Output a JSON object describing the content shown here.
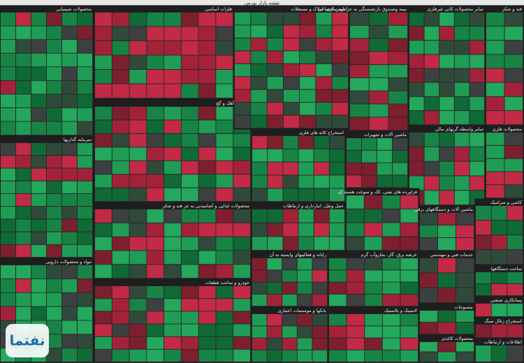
{
  "title": "نقشه بازار بورس",
  "sectors": [
    {
      "name": "محصولات شیمیایی"
    },
    {
      "name": "سرمایه گذاریها"
    },
    {
      "name": "مواد و محصولات دارویی"
    },
    {
      "name": "فلزات اساسی"
    },
    {
      "name": "سیمان، آهک و گچ"
    },
    {
      "name": "محصولات غذایی و آشامیدنی به جز قند و شکر"
    },
    {
      "name": "خودرو و ساخت قطعات"
    },
    {
      "name": "انبوه سازی، املاک و مستغلات"
    },
    {
      "name": "بیمه وصندوق بازنشستگی به جز تامین اجتماعی"
    },
    {
      "name": "سایر محصولات کانی غیرفلزی"
    },
    {
      "name": "قند و شکر"
    },
    {
      "name": "استخراج کانه های فلزی"
    },
    {
      "name": "ماشین آلات و تجهیزات"
    },
    {
      "name": "سایر واسطه گریهای مالی"
    },
    {
      "name": "محصولات فلزی"
    },
    {
      "name": "حمل ونقل، انبارداری و ارتباطات"
    },
    {
      "name": "فراورده های نفتی، کک و سوخت هسته ای"
    },
    {
      "name": "ماشین آلات و دستگاههای برقی"
    },
    {
      "name": "کاشی و سرامیک"
    },
    {
      "name": "رایانه و فعالیتهای وابسته به آن"
    },
    {
      "name": "عرضه برق، گاز، بخاروآب گرم"
    },
    {
      "name": "بانکها و موسسات اعتباری"
    },
    {
      "name": "لاستیک و پلاستیک"
    },
    {
      "name": "خدمات فنی و مهندسی"
    },
    {
      "name": "ساخت دستگاهها"
    },
    {
      "name": "منسوجات"
    },
    {
      "name": "پیمانکاری صنعتی"
    },
    {
      "name": "محصولات کاغذی"
    },
    {
      "name": "استخراج زغال سنگ"
    },
    {
      "name": "اطلاعات و ارتباطات"
    }
  ],
  "watermark": "نفتما"
}
